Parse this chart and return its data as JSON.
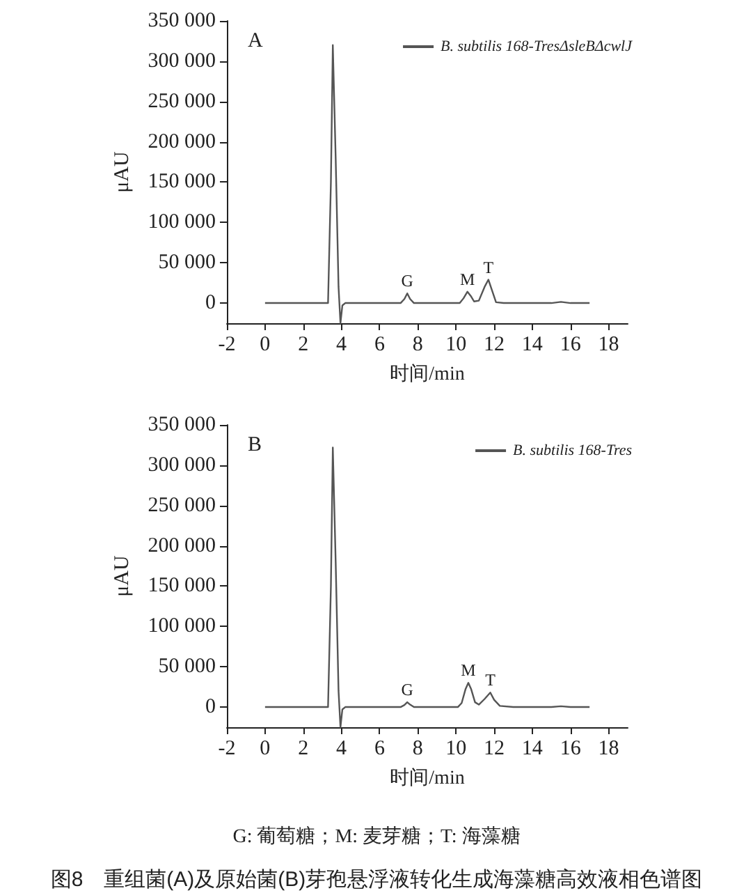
{
  "chart_data": [
    {
      "type": "line",
      "title": "A",
      "xlabel": "时间/min",
      "ylabel": "μAU",
      "xlim": [
        -2,
        19
      ],
      "xticks": [
        -2,
        0,
        2,
        4,
        6,
        8,
        10,
        12,
        14,
        16,
        18
      ],
      "ylim": [
        -25000,
        350000
      ],
      "yticks": [
        {
          "value": 0,
          "label": "0"
        },
        {
          "value": 50000,
          "label": "50 000"
        },
        {
          "value": 100000,
          "label": "100 000"
        },
        {
          "value": 150000,
          "label": "150 000"
        },
        {
          "value": 200000,
          "label": "200 000"
        },
        {
          "value": 250000,
          "label": "250 000"
        },
        {
          "value": 300000,
          "label": "300 000"
        },
        {
          "value": 350000,
          "label": "350 000"
        }
      ],
      "legend": "top right",
      "grid": false,
      "marker": "none",
      "line_style": "solid",
      "series": [
        {
          "name": "B. subtilis 168-TresΔsleBΔcwlJ",
          "color": "#555555",
          "x": [
            0,
            3.3,
            3.45,
            3.55,
            3.7,
            3.85,
            3.95,
            4.05,
            4.2,
            7.1,
            7.3,
            7.45,
            7.6,
            7.8,
            10.2,
            10.4,
            10.6,
            10.8,
            10.95,
            11.2,
            11.5,
            11.7,
            11.9,
            12.1,
            12.5,
            15,
            15.5,
            16,
            17
          ],
          "values": [
            0,
            0,
            150000,
            320000,
            180000,
            20000,
            -25000,
            -3000,
            0,
            0,
            5000,
            12000,
            5000,
            0,
            0,
            6000,
            14000,
            8000,
            2000,
            3000,
            20000,
            29000,
            15000,
            1000,
            0,
            0,
            1500,
            0,
            0
          ]
        }
      ],
      "annotations": [
        {
          "text": "G",
          "x": 7.45,
          "y": 12000
        },
        {
          "text": "M",
          "x": 10.6,
          "y": 14000
        },
        {
          "text": "T",
          "x": 11.7,
          "y": 29000
        }
      ]
    },
    {
      "type": "line",
      "title": "B",
      "xlabel": "时间/min",
      "ylabel": "μAU",
      "xlim": [
        -2,
        19
      ],
      "xticks": [
        -2,
        0,
        2,
        4,
        6,
        8,
        10,
        12,
        14,
        16,
        18
      ],
      "ylim": [
        -25000,
        350000
      ],
      "yticks": [
        {
          "value": 0,
          "label": "0"
        },
        {
          "value": 50000,
          "label": "50 000"
        },
        {
          "value": 100000,
          "label": "100 000"
        },
        {
          "value": 150000,
          "label": "150 000"
        },
        {
          "value": 200000,
          "label": "200 000"
        },
        {
          "value": 250000,
          "label": "250 000"
        },
        {
          "value": 300000,
          "label": "300 000"
        },
        {
          "value": 350000,
          "label": "350 000"
        }
      ],
      "legend": "top right",
      "grid": false,
      "marker": "none",
      "line_style": "solid",
      "series": [
        {
          "name": "B. subtilis 168-Tres",
          "color": "#555555",
          "x": [
            0,
            3.3,
            3.45,
            3.55,
            3.7,
            3.85,
            3.95,
            4.05,
            4.2,
            7.1,
            7.3,
            7.45,
            7.6,
            7.8,
            10.1,
            10.3,
            10.5,
            10.65,
            10.8,
            11,
            11.2,
            11.5,
            11.8,
            12,
            12.3,
            13,
            15,
            15.5,
            16,
            17
          ],
          "values": [
            0,
            0,
            150000,
            322000,
            180000,
            20000,
            -25000,
            -3000,
            0,
            0,
            2500,
            6000,
            3000,
            0,
            0,
            5000,
            22000,
            30000,
            22000,
            6000,
            3000,
            10000,
            18000,
            9000,
            1500,
            0,
            0,
            1000,
            0,
            0
          ]
        }
      ],
      "annotations": [
        {
          "text": "G",
          "x": 7.45,
          "y": 6000
        },
        {
          "text": "M",
          "x": 10.65,
          "y": 30000
        },
        {
          "text": "T",
          "x": 11.8,
          "y": 18000
        },
        "G: 葡萄糖；M: 麦芽糖；T: 海藻糖",
        "图8　重组菌(A)及原始菌(B)芽孢悬浮液转化生成海藻糖高效液相色谱图"
      ]
    }
  ]
}
